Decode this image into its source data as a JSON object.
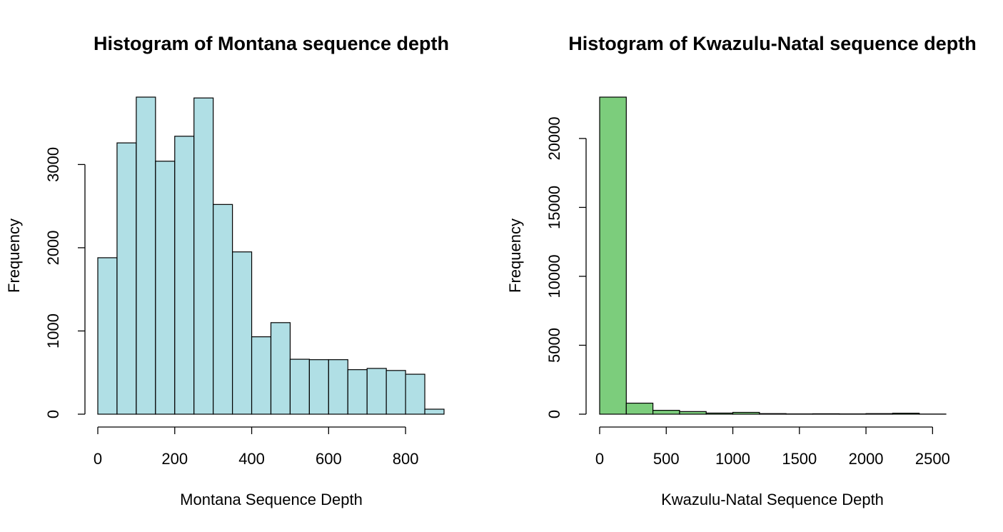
{
  "chart_data": [
    {
      "type": "bar",
      "title": "Histogram of Montana sequence depth",
      "xlabel": "Montana Sequence Depth",
      "ylabel": "Frequency",
      "bar_color": "#b0dfe5",
      "bin_width": 50,
      "bin_edges_start": 0,
      "values": [
        1880,
        3260,
        3810,
        3040,
        3340,
        3800,
        2520,
        1950,
        930,
        1100,
        660,
        655,
        655,
        535,
        550,
        525,
        480,
        60
      ],
      "xlim": [
        0,
        900
      ],
      "ylim": [
        0,
        3810
      ],
      "x_ticks": [
        0,
        200,
        400,
        600,
        800
      ],
      "x_tick_labels": [
        "0",
        "200",
        "400",
        "600",
        "800"
      ],
      "y_ticks": [
        0,
        1000,
        2000,
        3000
      ],
      "y_tick_labels": [
        "0",
        "1000",
        "2000",
        "3000"
      ],
      "grid": false,
      "legend": "none"
    },
    {
      "type": "bar",
      "title": "Histogram of Kwazulu-Natal sequence depth",
      "xlabel": "Kwazulu-Natal Sequence Depth",
      "ylabel": "Frequency",
      "bar_color": "#7ccd7c",
      "bin_width": 200,
      "bin_edges_start": 0,
      "values": [
        23000,
        800,
        280,
        190,
        80,
        130,
        40,
        20,
        30,
        20,
        40,
        70,
        10
      ],
      "xlim": [
        0,
        2600
      ],
      "ylim": [
        0,
        23000
      ],
      "x_ticks": [
        0,
        500,
        1000,
        1500,
        2000,
        2500
      ],
      "x_tick_labels": [
        "0",
        "500",
        "1000",
        "1500",
        "2000",
        "2500"
      ],
      "y_ticks": [
        0,
        5000,
        10000,
        15000,
        20000
      ],
      "y_tick_labels": [
        "0",
        "5000",
        "10000",
        "15000",
        "20000"
      ],
      "grid": false,
      "legend": "none"
    }
  ]
}
